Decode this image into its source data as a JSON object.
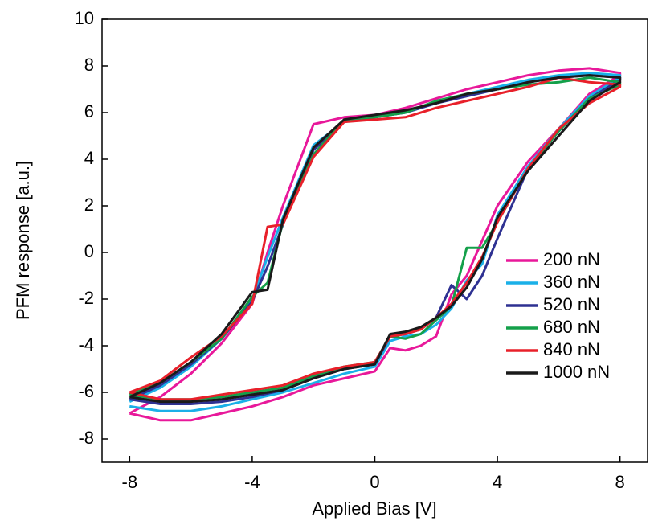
{
  "chart_data": {
    "type": "line",
    "x_label": "Applied Bias [V]",
    "y_label": "PFM response [a.u.]",
    "x": [
      -8,
      -7,
      -6,
      -5,
      -4,
      -3,
      -2,
      -1,
      0,
      0.5,
      1,
      1.5,
      2,
      2.5,
      3,
      3.5,
      4,
      5,
      6,
      7,
      8,
      8,
      7,
      6,
      5,
      4,
      3,
      2,
      1,
      0,
      -1,
      -2,
      -3,
      -3.5,
      -4,
      -5,
      -6,
      -7,
      -8
    ],
    "xlim": [
      -8.9,
      8.9
    ],
    "xticks": [
      -8,
      -4,
      0,
      4,
      8
    ],
    "ylim": [
      -9,
      10
    ],
    "yticks": [
      -8,
      -6,
      -4,
      -2,
      0,
      2,
      4,
      6,
      8,
      10
    ],
    "legend": "right",
    "series": [
      {
        "name": "200 nN",
        "color": "#e8189a",
        "values": [
          -6.9,
          -7.2,
          -7.2,
          -6.9,
          -6.6,
          -6.2,
          -5.7,
          -5.4,
          -5.1,
          -4.1,
          -4.2,
          -4.0,
          -3.6,
          -1.8,
          -1.0,
          0.5,
          2.0,
          3.9,
          5.3,
          6.8,
          7.6,
          7.7,
          7.9,
          7.8,
          7.6,
          7.3,
          7.0,
          6.6,
          6.2,
          5.9,
          5.8,
          5.5,
          2.0,
          0.0,
          -2.2,
          -3.9,
          -5.2,
          -6.2,
          -6.9
        ]
      },
      {
        "name": "360 nN",
        "color": "#1ab0e8",
        "values": [
          -6.6,
          -6.8,
          -6.8,
          -6.6,
          -6.3,
          -6.0,
          -5.6,
          -5.2,
          -4.9,
          -3.8,
          -3.6,
          -3.5,
          -3.1,
          -2.4,
          -1.2,
          -0.5,
          1.6,
          3.7,
          5.3,
          6.7,
          7.5,
          7.6,
          7.7,
          7.6,
          7.4,
          7.1,
          6.8,
          6.4,
          6.0,
          5.8,
          5.6,
          4.6,
          1.5,
          -0.2,
          -2.0,
          -3.7,
          -4.9,
          -5.8,
          -6.4
        ]
      },
      {
        "name": "520 nN",
        "color": "#2e3192",
        "values": [
          -6.3,
          -6.5,
          -6.5,
          -6.4,
          -6.2,
          -5.9,
          -5.4,
          -5.0,
          -4.8,
          -3.6,
          -3.5,
          -3.3,
          -2.8,
          -1.4,
          -2.0,
          -1.0,
          0.6,
          3.6,
          5.2,
          6.6,
          7.4,
          7.5,
          7.6,
          7.5,
          7.3,
          7.0,
          6.7,
          6.4,
          6.0,
          5.8,
          5.6,
          4.4,
          1.2,
          -0.6,
          -2.1,
          -3.7,
          -4.8,
          -5.7,
          -6.3
        ]
      },
      {
        "name": "680 nN",
        "color": "#14a04a",
        "values": [
          -6.1,
          -6.3,
          -6.3,
          -6.2,
          -6.0,
          -5.8,
          -5.3,
          -4.9,
          -4.7,
          -3.6,
          -3.7,
          -3.5,
          -2.9,
          -2.3,
          0.2,
          0.2,
          1.3,
          3.6,
          5.2,
          6.6,
          7.2,
          7.3,
          7.5,
          7.3,
          7.2,
          7.0,
          6.8,
          6.5,
          6.0,
          5.8,
          5.7,
          4.2,
          1.3,
          -1.3,
          -1.9,
          -3.7,
          -4.7,
          -5.6,
          -6.1
        ]
      },
      {
        "name": "840 nN",
        "color": "#e8202a",
        "values": [
          -6.0,
          -6.3,
          -6.3,
          -6.1,
          -5.9,
          -5.7,
          -5.2,
          -4.9,
          -4.7,
          -3.6,
          -3.5,
          -3.3,
          -2.8,
          -2.2,
          -1.3,
          -0.2,
          1.3,
          3.6,
          5.3,
          6.4,
          7.1,
          7.2,
          7.3,
          7.5,
          7.1,
          6.8,
          6.5,
          6.2,
          5.8,
          5.7,
          5.6,
          4.1,
          1.2,
          1.1,
          -2.2,
          -3.6,
          -4.5,
          -5.5,
          -6.0
        ]
      },
      {
        "name": "1000 nN",
        "color": "#1a1a1a",
        "values": [
          -6.2,
          -6.4,
          -6.4,
          -6.3,
          -6.1,
          -5.9,
          -5.4,
          -5.0,
          -4.8,
          -3.5,
          -3.4,
          -3.2,
          -2.8,
          -2.3,
          -1.5,
          -0.3,
          1.5,
          3.5,
          5.0,
          6.5,
          7.3,
          7.5,
          7.6,
          7.5,
          7.3,
          7.0,
          6.8,
          6.4,
          6.1,
          5.9,
          5.7,
          4.5,
          1.4,
          -1.6,
          -1.7,
          -3.5,
          -4.7,
          -5.6,
          -6.2
        ]
      }
    ]
  }
}
